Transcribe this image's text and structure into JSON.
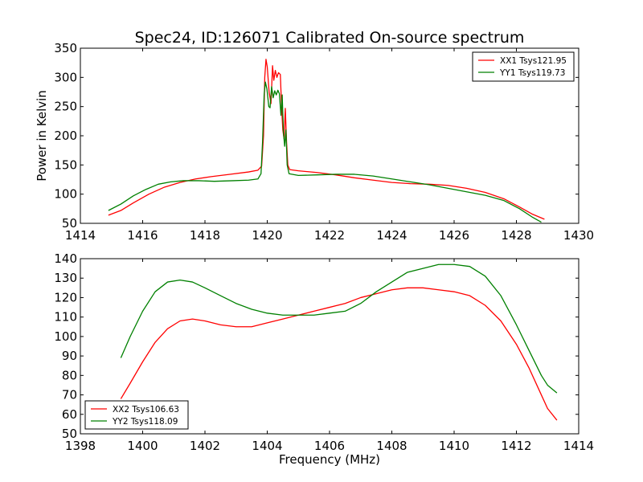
{
  "figure": {
    "title": "Spec24, ID:126071 Calibrated On-source spectrum",
    "ylabel": "Power in Kelvin",
    "xlabel": "Frequency (MHz)"
  },
  "colors": {
    "xx": "#ff0000",
    "yy": "#008000"
  },
  "chart_data": [
    {
      "type": "line",
      "xlim": [
        1414,
        1430
      ],
      "ylim": [
        50,
        350
      ],
      "xticks": [
        1414,
        1416,
        1418,
        1420,
        1422,
        1424,
        1426,
        1428,
        1430
      ],
      "yticks": [
        50,
        100,
        150,
        200,
        250,
        300,
        350
      ],
      "legend_position": "upper-right",
      "series": [
        {
          "name": "XX1 Tsys121.95",
          "color": "#ff0000",
          "points": [
            [
              1414.9,
              64
            ],
            [
              1415.3,
              72
            ],
            [
              1415.7,
              85
            ],
            [
              1416.2,
              100
            ],
            [
              1416.7,
              112
            ],
            [
              1417.2,
              120
            ],
            [
              1417.7,
              126
            ],
            [
              1418.2,
              130
            ],
            [
              1418.8,
              134
            ],
            [
              1419.4,
              138
            ],
            [
              1419.7,
              141
            ],
            [
              1419.82,
              148
            ],
            [
              1419.88,
              200
            ],
            [
              1419.92,
              300
            ],
            [
              1419.96,
              331
            ],
            [
              1420.0,
              318
            ],
            [
              1420.06,
              275
            ],
            [
              1420.12,
              255
            ],
            [
              1420.17,
              320
            ],
            [
              1420.21,
              295
            ],
            [
              1420.26,
              312
            ],
            [
              1420.31,
              300
            ],
            [
              1420.36,
              308
            ],
            [
              1420.42,
              305
            ],
            [
              1420.46,
              250
            ],
            [
              1420.5,
              210
            ],
            [
              1420.54,
              195
            ],
            [
              1420.58,
              247
            ],
            [
              1420.62,
              190
            ],
            [
              1420.66,
              150
            ],
            [
              1420.72,
              142
            ],
            [
              1421.0,
              140
            ],
            [
              1421.6,
              137
            ],
            [
              1422.2,
              133
            ],
            [
              1422.8,
              128
            ],
            [
              1423.4,
              124
            ],
            [
              1424.0,
              120
            ],
            [
              1424.6,
              118
            ],
            [
              1425.2,
              117
            ],
            [
              1425.8,
              115
            ],
            [
              1426.4,
              110
            ],
            [
              1427.0,
              103
            ],
            [
              1427.6,
              92
            ],
            [
              1428.1,
              78
            ],
            [
              1428.5,
              66
            ],
            [
              1428.9,
              57
            ]
          ]
        },
        {
          "name": "YY1 Tsys119.73",
          "color": "#008000",
          "points": [
            [
              1414.9,
              72
            ],
            [
              1415.3,
              83
            ],
            [
              1415.7,
              97
            ],
            [
              1416.1,
              108
            ],
            [
              1416.5,
              117
            ],
            [
              1416.9,
              121
            ],
            [
              1417.3,
              123
            ],
            [
              1417.8,
              123
            ],
            [
              1418.3,
              122
            ],
            [
              1418.9,
              123
            ],
            [
              1419.4,
              124
            ],
            [
              1419.7,
              126
            ],
            [
              1419.8,
              135
            ],
            [
              1419.85,
              190
            ],
            [
              1419.9,
              270
            ],
            [
              1419.94,
              292
            ],
            [
              1419.99,
              280
            ],
            [
              1420.05,
              250
            ],
            [
              1420.09,
              248
            ],
            [
              1420.14,
              284
            ],
            [
              1420.19,
              265
            ],
            [
              1420.24,
              277
            ],
            [
              1420.29,
              270
            ],
            [
              1420.34,
              278
            ],
            [
              1420.39,
              272
            ],
            [
              1420.44,
              235
            ],
            [
              1420.48,
              270
            ],
            [
              1420.52,
              205
            ],
            [
              1420.56,
              182
            ],
            [
              1420.6,
              210
            ],
            [
              1420.64,
              150
            ],
            [
              1420.7,
              135
            ],
            [
              1421.0,
              132
            ],
            [
              1421.6,
              133
            ],
            [
              1422.2,
              134
            ],
            [
              1422.8,
              134
            ],
            [
              1423.4,
              131
            ],
            [
              1424.0,
              126
            ],
            [
              1424.6,
              121
            ],
            [
              1425.2,
              116
            ],
            [
              1425.8,
              110
            ],
            [
              1426.4,
              104
            ],
            [
              1427.0,
              98
            ],
            [
              1427.6,
              89
            ],
            [
              1428.1,
              75
            ],
            [
              1428.5,
              61
            ],
            [
              1428.8,
              52
            ]
          ]
        }
      ]
    },
    {
      "type": "line",
      "xlim": [
        1398,
        1414
      ],
      "ylim": [
        50,
        140
      ],
      "xticks": [
        1398,
        1400,
        1402,
        1404,
        1406,
        1408,
        1410,
        1412,
        1414
      ],
      "yticks": [
        50,
        60,
        70,
        80,
        90,
        100,
        110,
        120,
        130,
        140
      ],
      "legend_position": "lower-left",
      "series": [
        {
          "name": "XX2 Tsys106.63",
          "color": "#ff0000",
          "points": [
            [
              1399.3,
              68
            ],
            [
              1399.6,
              76
            ],
            [
              1400.0,
              87
            ],
            [
              1400.4,
              97
            ],
            [
              1400.8,
              104
            ],
            [
              1401.2,
              108
            ],
            [
              1401.6,
              109
            ],
            [
              1402.0,
              108
            ],
            [
              1402.5,
              106
            ],
            [
              1403.0,
              105
            ],
            [
              1403.5,
              105
            ],
            [
              1404.0,
              107
            ],
            [
              1404.5,
              109
            ],
            [
              1405.0,
              111
            ],
            [
              1405.5,
              113
            ],
            [
              1406.0,
              115
            ],
            [
              1406.5,
              117
            ],
            [
              1407.0,
              120
            ],
            [
              1407.5,
              122
            ],
            [
              1408.0,
              124
            ],
            [
              1408.5,
              125
            ],
            [
              1409.0,
              125
            ],
            [
              1409.5,
              124
            ],
            [
              1410.0,
              123
            ],
            [
              1410.5,
              121
            ],
            [
              1411.0,
              116
            ],
            [
              1411.5,
              108
            ],
            [
              1412.0,
              96
            ],
            [
              1412.4,
              84
            ],
            [
              1412.8,
              70
            ],
            [
              1413.0,
              63
            ],
            [
              1413.3,
              57
            ]
          ]
        },
        {
          "name": "YY2 Tsys118.09",
          "color": "#008000",
          "points": [
            [
              1399.3,
              89
            ],
            [
              1399.6,
              100
            ],
            [
              1400.0,
              113
            ],
            [
              1400.4,
              123
            ],
            [
              1400.8,
              128
            ],
            [
              1401.2,
              129
            ],
            [
              1401.6,
              128
            ],
            [
              1402.0,
              125
            ],
            [
              1402.5,
              121
            ],
            [
              1403.0,
              117
            ],
            [
              1403.5,
              114
            ],
            [
              1404.0,
              112
            ],
            [
              1404.5,
              111
            ],
            [
              1405.0,
              111
            ],
            [
              1405.5,
              111
            ],
            [
              1406.0,
              112
            ],
            [
              1406.5,
              113
            ],
            [
              1407.0,
              117
            ],
            [
              1407.5,
              123
            ],
            [
              1408.0,
              128
            ],
            [
              1408.5,
              133
            ],
            [
              1409.0,
              135
            ],
            [
              1409.5,
              137
            ],
            [
              1410.0,
              137
            ],
            [
              1410.5,
              136
            ],
            [
              1411.0,
              131
            ],
            [
              1411.5,
              121
            ],
            [
              1412.0,
              106
            ],
            [
              1412.4,
              93
            ],
            [
              1412.8,
              80
            ],
            [
              1413.0,
              75
            ],
            [
              1413.3,
              71
            ]
          ]
        }
      ]
    }
  ]
}
